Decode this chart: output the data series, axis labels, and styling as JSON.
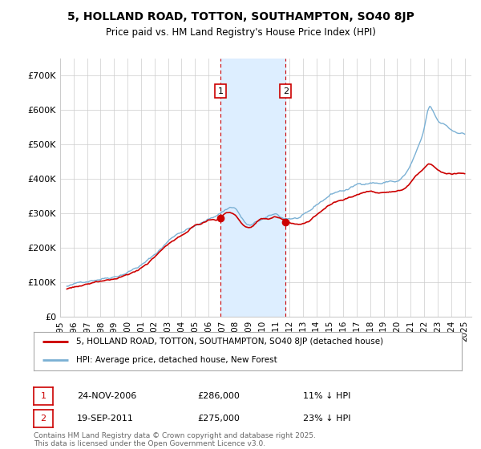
{
  "title": "5, HOLLAND ROAD, TOTTON, SOUTHAMPTON, SO40 8JP",
  "subtitle": "Price paid vs. HM Land Registry's House Price Index (HPI)",
  "ylabel_ticks": [
    "£0",
    "£100K",
    "£200K",
    "£300K",
    "£400K",
    "£500K",
    "£600K",
    "£700K"
  ],
  "ytick_values": [
    0,
    100000,
    200000,
    300000,
    400000,
    500000,
    600000,
    700000
  ],
  "ylim": [
    0,
    750000
  ],
  "xlim_start": 1995.3,
  "xlim_end": 2025.5,
  "marker1_x": 2006.9,
  "marker2_x": 2011.72,
  "marker1_price": 286000,
  "marker2_price": 275000,
  "shaded_region_start": 2006.9,
  "shaded_region_end": 2011.72,
  "legend_property_label": "5, HOLLAND ROAD, TOTTON, SOUTHAMPTON, SO40 8JP (detached house)",
  "legend_hpi_label": "HPI: Average price, detached house, New Forest",
  "annotation1_label": "1",
  "annotation2_label": "2",
  "annotation1_date": "24-NOV-2006",
  "annotation1_price_str": "£286,000",
  "annotation1_pct": "11% ↓ HPI",
  "annotation2_date": "19-SEP-2011",
  "annotation2_price_str": "£275,000",
  "annotation2_pct": "23% ↓ HPI",
  "footer": "Contains HM Land Registry data © Crown copyright and database right 2025.\nThis data is licensed under the Open Government Licence v3.0.",
  "property_line_color": "#cc0000",
  "hpi_line_color": "#7ab0d4",
  "shaded_color": "#ddeeff",
  "dashed_line_color": "#cc0000",
  "background_color": "#ffffff",
  "grid_color": "#cccccc",
  "annotation_box_color": "#cc0000",
  "hpi_key_points": [
    [
      1995.5,
      88000
    ],
    [
      1996.5,
      97000
    ],
    [
      1997.5,
      110000
    ],
    [
      1998.5,
      120000
    ],
    [
      1999.5,
      133000
    ],
    [
      2000.5,
      152000
    ],
    [
      2001.5,
      175000
    ],
    [
      2002.5,
      210000
    ],
    [
      2003.5,
      248000
    ],
    [
      2004.5,
      270000
    ],
    [
      2005.5,
      285000
    ],
    [
      2006.5,
      305000
    ],
    [
      2007.5,
      330000
    ],
    [
      2008.0,
      330000
    ],
    [
      2008.5,
      300000
    ],
    [
      2009.0,
      280000
    ],
    [
      2009.5,
      285000
    ],
    [
      2010.0,
      295000
    ],
    [
      2010.5,
      300000
    ],
    [
      2011.0,
      305000
    ],
    [
      2011.5,
      295000
    ],
    [
      2012.0,
      295000
    ],
    [
      2012.5,
      295000
    ],
    [
      2013.0,
      300000
    ],
    [
      2013.5,
      308000
    ],
    [
      2014.0,
      325000
    ],
    [
      2014.5,
      340000
    ],
    [
      2015.0,
      355000
    ],
    [
      2015.5,
      365000
    ],
    [
      2016.0,
      370000
    ],
    [
      2016.5,
      375000
    ],
    [
      2017.0,
      385000
    ],
    [
      2017.5,
      390000
    ],
    [
      2018.0,
      395000
    ],
    [
      2018.5,
      395000
    ],
    [
      2019.0,
      395000
    ],
    [
      2019.5,
      400000
    ],
    [
      2020.0,
      400000
    ],
    [
      2020.5,
      415000
    ],
    [
      2021.0,
      445000
    ],
    [
      2021.5,
      490000
    ],
    [
      2022.0,
      545000
    ],
    [
      2022.3,
      600000
    ],
    [
      2022.7,
      590000
    ],
    [
      2023.0,
      565000
    ],
    [
      2023.5,
      555000
    ],
    [
      2024.0,
      540000
    ],
    [
      2024.5,
      535000
    ],
    [
      2025.0,
      530000
    ]
  ],
  "prop_key_points": [
    [
      1995.5,
      80000
    ],
    [
      1996.5,
      88000
    ],
    [
      1997.5,
      100000
    ],
    [
      1998.5,
      112000
    ],
    [
      1999.5,
      123000
    ],
    [
      2000.5,
      140000
    ],
    [
      2001.5,
      163000
    ],
    [
      2002.5,
      195000
    ],
    [
      2003.5,
      228000
    ],
    [
      2004.5,
      250000
    ],
    [
      2005.0,
      265000
    ],
    [
      2005.5,
      268000
    ],
    [
      2006.0,
      278000
    ],
    [
      2006.5,
      280000
    ],
    [
      2006.9,
      286000
    ],
    [
      2007.0,
      290000
    ],
    [
      2007.5,
      300000
    ],
    [
      2008.0,
      290000
    ],
    [
      2008.5,
      265000
    ],
    [
      2009.0,
      255000
    ],
    [
      2009.5,
      265000
    ],
    [
      2010.0,
      278000
    ],
    [
      2010.5,
      280000
    ],
    [
      2011.0,
      285000
    ],
    [
      2011.5,
      278000
    ],
    [
      2011.72,
      275000
    ],
    [
      2012.0,
      270000
    ],
    [
      2012.5,
      268000
    ],
    [
      2013.0,
      272000
    ],
    [
      2013.5,
      280000
    ],
    [
      2014.0,
      295000
    ],
    [
      2014.5,
      310000
    ],
    [
      2015.0,
      325000
    ],
    [
      2015.5,
      335000
    ],
    [
      2016.0,
      340000
    ],
    [
      2016.5,
      345000
    ],
    [
      2017.0,
      355000
    ],
    [
      2017.5,
      362000
    ],
    [
      2018.0,
      368000
    ],
    [
      2018.5,
      368000
    ],
    [
      2019.0,
      370000
    ],
    [
      2019.5,
      372000
    ],
    [
      2020.0,
      373000
    ],
    [
      2020.5,
      380000
    ],
    [
      2021.0,
      398000
    ],
    [
      2021.5,
      420000
    ],
    [
      2022.0,
      435000
    ],
    [
      2022.3,
      445000
    ],
    [
      2022.7,
      438000
    ],
    [
      2023.0,
      428000
    ],
    [
      2023.5,
      418000
    ],
    [
      2024.0,
      415000
    ],
    [
      2024.5,
      418000
    ],
    [
      2025.0,
      415000
    ]
  ]
}
